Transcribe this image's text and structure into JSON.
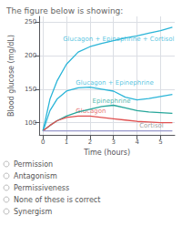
{
  "chart_data": {
    "type": "line",
    "title": "The figure below is showing:",
    "xlabel": "Time (hours)",
    "ylabel": "Blood glucose (mg/dL)",
    "x": [
      0,
      0.08,
      0.3,
      0.6,
      1.0,
      1.5,
      2.0,
      2.5,
      3.0,
      3.5,
      4.0,
      4.5,
      5.0,
      5.5
    ],
    "xlim": [
      -0.15,
      5.6
    ],
    "xticks": [
      0,
      1,
      2,
      3,
      4,
      5
    ],
    "ylim": [
      82,
      258
    ],
    "yticks": [
      100,
      150,
      200,
      250
    ],
    "grid": true,
    "series": [
      {
        "name": "Glucagon + Epinephrine + Cortisol",
        "color": "#2bb5d8",
        "values": [
          88,
          100,
          135,
          162,
          187,
          205,
          213,
          218,
          222,
          226,
          229,
          233,
          237,
          242
        ]
      },
      {
        "name": "Glucagon + Epinephrine",
        "color": "#2bb5d8",
        "values": [
          88,
          95,
          118,
          135,
          147,
          152,
          153,
          150,
          147,
          138,
          134,
          136,
          139,
          142
        ]
      },
      {
        "name": "Epinephrine",
        "color": "#26a69a",
        "values": [
          88,
          90,
          96,
          103,
          110,
          116,
          120,
          124,
          126,
          122,
          118,
          116,
          115,
          114
        ]
      },
      {
        "name": "Glucagon",
        "color": "#e05050",
        "values": [
          88,
          90,
          96,
          103,
          108,
          110,
          110,
          108,
          106,
          104,
          102,
          101,
          100,
          100
        ]
      },
      {
        "name": "Cortisol",
        "color": "#9898cc",
        "values": [
          88,
          88,
          88,
          88,
          88,
          88,
          88,
          88,
          88,
          88,
          88,
          88,
          88,
          88
        ]
      }
    ],
    "annotations": [
      {
        "text": "Glucagon + Epinephrine + Cortisol",
        "x": 0.85,
        "y": 219,
        "color": "#2bb5d8"
      },
      {
        "text": "Glucagon + Epinephrine",
        "x": 1.4,
        "y": 154,
        "color": "#2bb5d8"
      },
      {
        "text": "Epinephrine",
        "x": 2.1,
        "y": 127,
        "color": "#26a69a"
      },
      {
        "text": "Glucagon",
        "x": 1.4,
        "y": 112,
        "color": "#e05050"
      },
      {
        "text": "Cortisol",
        "x": 4.1,
        "y": 91,
        "color": "#888888"
      },
      {
        "text": "Permission"
      },
      {
        "text": "Antagonism"
      },
      {
        "text": "Permissiveness"
      },
      {
        "text": "None of these is correct"
      },
      {
        "text": "Synergism"
      }
    ]
  }
}
